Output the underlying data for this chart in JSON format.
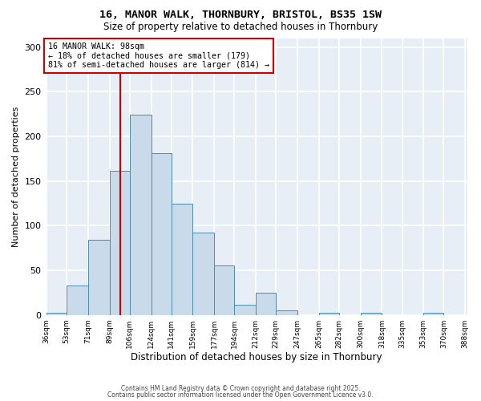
{
  "title_line1": "16, MANOR WALK, THORNBURY, BRISTOL, BS35 1SW",
  "title_line2": "Size of property relative to detached houses in Thornbury",
  "xlabel": "Distribution of detached houses by size in Thornbury",
  "ylabel": "Number of detached properties",
  "bin_edges": [
    36,
    53,
    71,
    89,
    106,
    124,
    141,
    159,
    177,
    194,
    212,
    229,
    247,
    265,
    282,
    300,
    318,
    335,
    353,
    370,
    388
  ],
  "bar_heights": [
    2,
    33,
    84,
    161,
    224,
    181,
    125,
    92,
    55,
    11,
    25,
    5,
    0,
    2,
    0,
    2,
    0,
    0,
    2,
    0
  ],
  "bar_color": "#c9daea",
  "bar_edge_color": "#4d8bab",
  "vline_x": 98,
  "vline_color": "#cc0000",
  "annotation_text": "16 MANOR WALK: 98sqm\n← 18% of detached houses are smaller (179)\n81% of semi-detached houses are larger (814) →",
  "annotation_box_facecolor": "white",
  "annotation_box_edgecolor": "#cc0000",
  "ylim": [
    0,
    310
  ],
  "yticks": [
    0,
    50,
    100,
    150,
    200,
    250,
    300
  ],
  "plot_bg_color": "#e8eef5",
  "grid_color": "white",
  "footer_line1": "Contains HM Land Registry data © Crown copyright and database right 2025.",
  "footer_line2": "Contains public sector information licensed under the Open Government Licence v3.0."
}
